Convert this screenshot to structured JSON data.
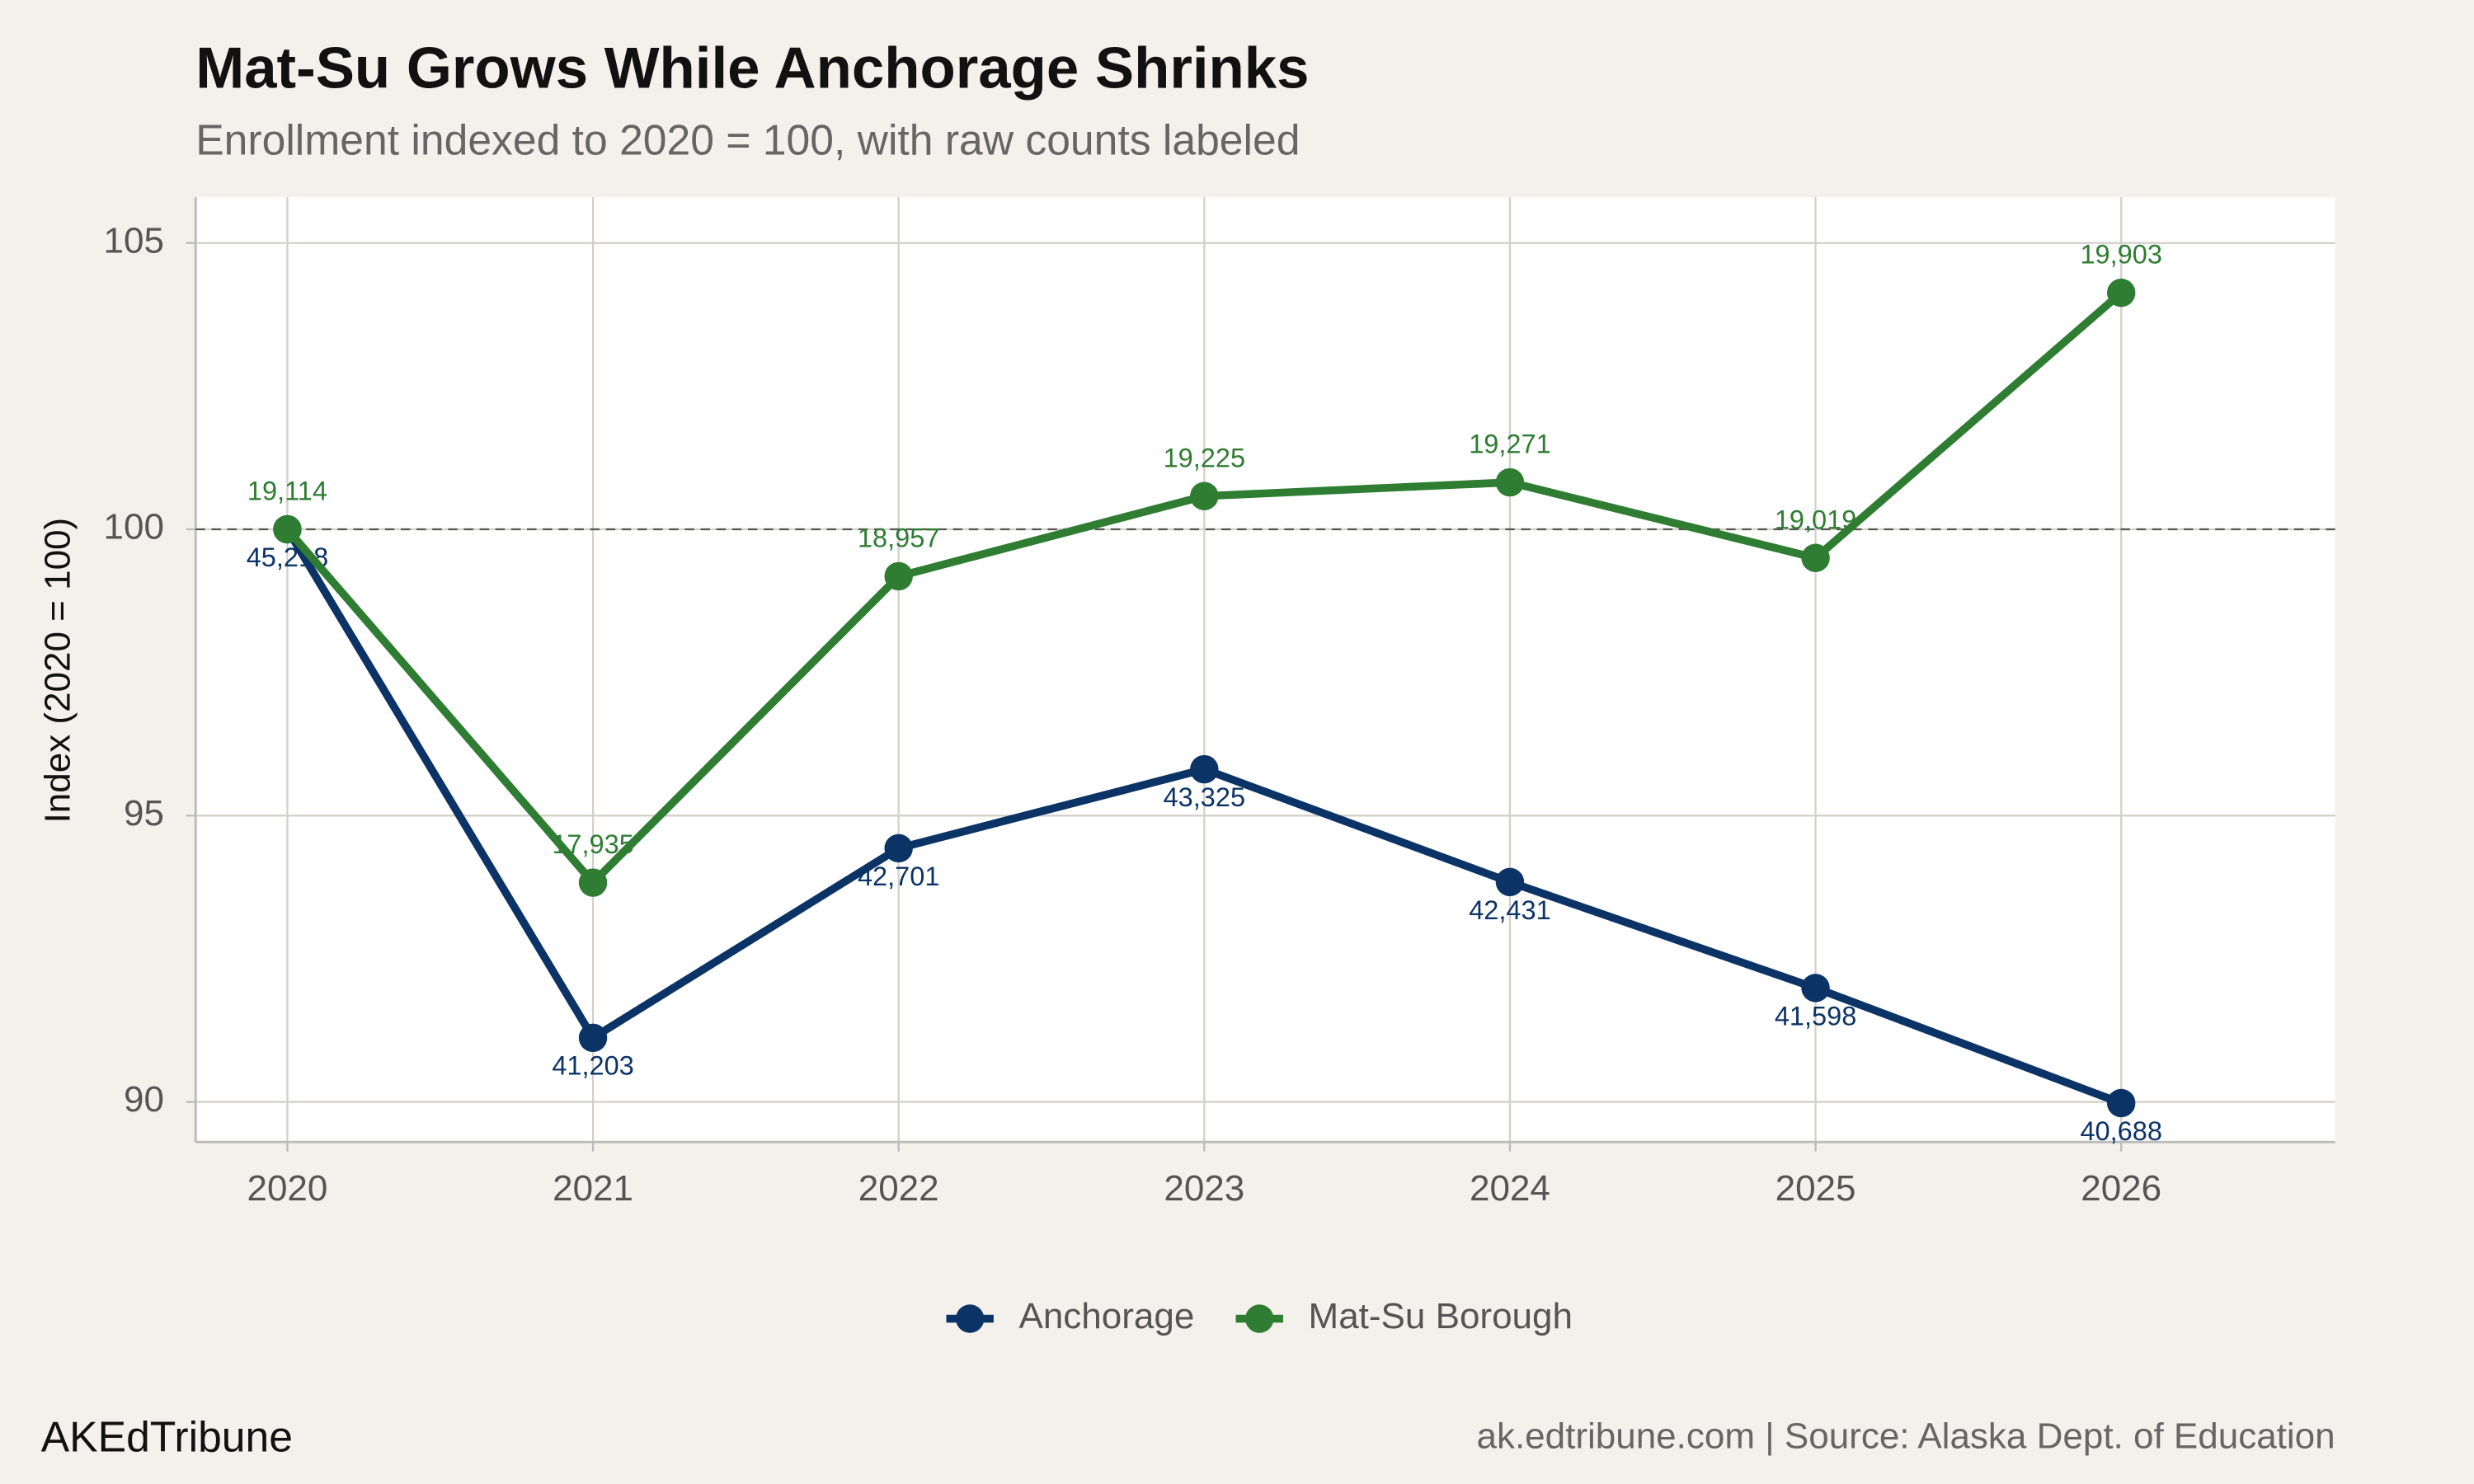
{
  "chart_data": {
    "type": "line",
    "title": "Mat-Su Grows While Anchorage Shrinks",
    "subtitle": "Enrollment indexed to 2020 = 100, with raw counts labeled",
    "y_label": "Index (2020 = 100)",
    "x": [
      2020,
      2021,
      2022,
      2023,
      2024,
      2025,
      2026
    ],
    "xlim": [
      2019.7,
      2026.7
    ],
    "xticks": [
      2020,
      2021,
      2022,
      2023,
      2024,
      2025,
      2026
    ],
    "ylim": [
      89.3,
      105.8
    ],
    "yticks": [
      90,
      95,
      100,
      105
    ],
    "reference_line": 100,
    "grid": true,
    "legend": "bottom",
    "series": [
      {
        "name": "Anchorage",
        "color": "#0b3366",
        "label_side": "below",
        "values": [
          100,
          91.12,
          94.43,
          95.81,
          93.84,
          91.99,
          89.98
        ],
        "raw_counts": [
          {
            "value": 45218,
            "label": "45,218"
          },
          {
            "value": 41203,
            "label": "41,203"
          },
          {
            "value": 42701,
            "label": "42,701"
          },
          {
            "value": 43325,
            "label": "43,325"
          },
          {
            "value": 42431,
            "label": "42,431"
          },
          {
            "value": 41598,
            "label": "41,598"
          },
          {
            "value": 40688,
            "label": "40,688"
          }
        ]
      },
      {
        "name": "Mat-Su Borough",
        "color": "#2e7d32",
        "label_side": "above",
        "values": [
          100,
          93.83,
          99.18,
          100.58,
          100.82,
          99.5,
          104.13
        ],
        "raw_counts": [
          {
            "value": 19114,
            "label": "19,114"
          },
          {
            "value": 17935,
            "label": "17,935"
          },
          {
            "value": 18957,
            "label": "18,957"
          },
          {
            "value": 19225,
            "label": "19,225"
          },
          {
            "value": 19271,
            "label": "19,271"
          },
          {
            "value": 19019,
            "label": "19,019"
          },
          {
            "value": 19903,
            "label": "19,903"
          }
        ]
      }
    ],
    "brand": "AKEdTribune",
    "caption": "ak.edtribune.com | Source: Alaska Dept. of Education"
  }
}
